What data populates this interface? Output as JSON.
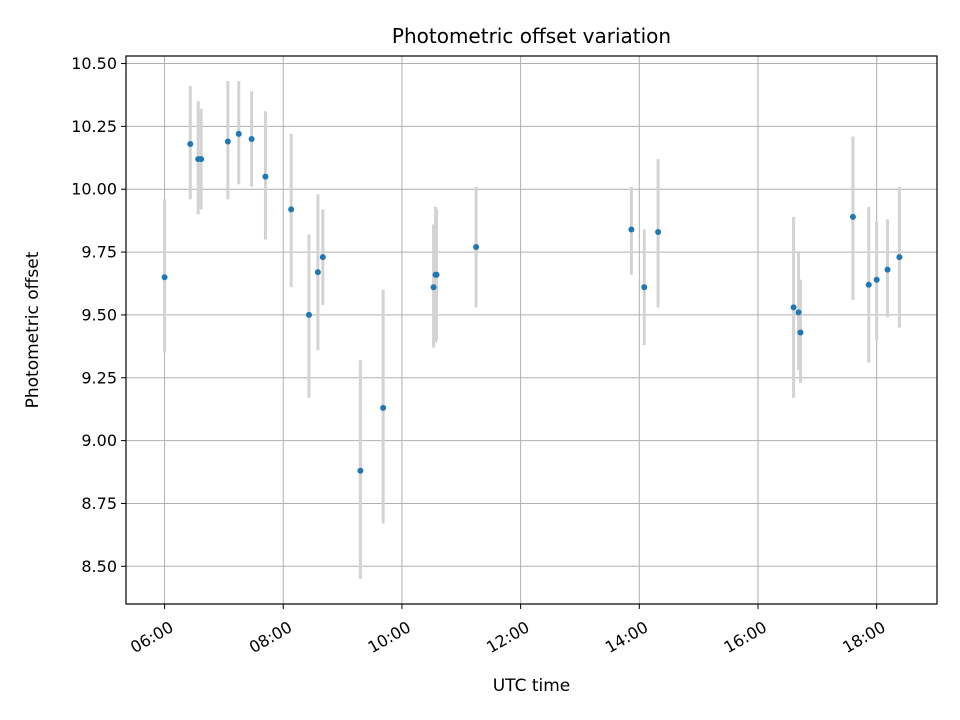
{
  "chart_data": {
    "type": "scatter",
    "title": "Photometric offset variation",
    "xlabel": "UTC time",
    "ylabel": "Photometric offset",
    "xlim": [
      "05:21",
      "19:01"
    ],
    "ylim": [
      8.35,
      10.53
    ],
    "x_ticks": [
      "06:00",
      "08:00",
      "10:00",
      "12:00",
      "14:00",
      "16:00",
      "18:00"
    ],
    "y_ticks": [
      8.5,
      8.75,
      9.0,
      9.25,
      9.5,
      9.75,
      10.0,
      10.25,
      10.5
    ],
    "y_tick_labels": [
      "8.50",
      "8.75",
      "9.00",
      "9.25",
      "9.50",
      "9.75",
      "10.00",
      "10.25",
      "10.50"
    ],
    "grid": true,
    "colors": {
      "marker": "#1f77b4",
      "errorbar": "#d3d3d3",
      "grid": "#b0b0b0"
    },
    "series": [
      {
        "points": [
          {
            "x": "06:00",
            "y": 9.65,
            "yerr_low": 9.35,
            "yerr_high": 9.96
          },
          {
            "x": "06:26",
            "y": 10.18,
            "yerr_low": 9.96,
            "yerr_high": 10.41
          },
          {
            "x": "06:34",
            "y": 10.12,
            "yerr_low": 9.9,
            "yerr_high": 10.35
          },
          {
            "x": "06:37",
            "y": 10.12,
            "yerr_low": 9.92,
            "yerr_high": 10.32
          },
          {
            "x": "07:04",
            "y": 10.19,
            "yerr_low": 9.96,
            "yerr_high": 10.43
          },
          {
            "x": "07:15",
            "y": 10.22,
            "yerr_low": 10.02,
            "yerr_high": 10.43
          },
          {
            "x": "07:28",
            "y": 10.2,
            "yerr_low": 10.01,
            "yerr_high": 10.39
          },
          {
            "x": "07:42",
            "y": 10.05,
            "yerr_low": 9.8,
            "yerr_high": 10.31
          },
          {
            "x": "08:08",
            "y": 9.92,
            "yerr_low": 9.61,
            "yerr_high": 10.22
          },
          {
            "x": "08:26",
            "y": 9.5,
            "yerr_low": 9.17,
            "yerr_high": 9.82
          },
          {
            "x": "08:35",
            "y": 9.67,
            "yerr_low": 9.36,
            "yerr_high": 9.98
          },
          {
            "x": "08:40",
            "y": 9.73,
            "yerr_low": 9.54,
            "yerr_high": 9.92
          },
          {
            "x": "09:18",
            "y": 8.88,
            "yerr_low": 8.45,
            "yerr_high": 9.32
          },
          {
            "x": "09:41",
            "y": 9.13,
            "yerr_low": 8.67,
            "yerr_high": 9.6
          },
          {
            "x": "10:32",
            "y": 9.61,
            "yerr_low": 9.37,
            "yerr_high": 9.86
          },
          {
            "x": "10:34",
            "y": 9.66,
            "yerr_low": 9.39,
            "yerr_high": 9.93
          },
          {
            "x": "10:35",
            "y": 9.66,
            "yerr_low": 9.4,
            "yerr_high": 9.92
          },
          {
            "x": "11:15",
            "y": 9.77,
            "yerr_low": 9.53,
            "yerr_high": 10.01
          },
          {
            "x": "13:52",
            "y": 9.84,
            "yerr_low": 9.66,
            "yerr_high": 10.01
          },
          {
            "x": "14:05",
            "y": 9.61,
            "yerr_low": 9.38,
            "yerr_high": 9.84
          },
          {
            "x": "14:19",
            "y": 9.83,
            "yerr_low": 9.53,
            "yerr_high": 10.12
          },
          {
            "x": "16:36",
            "y": 9.53,
            "yerr_low": 9.17,
            "yerr_high": 9.89
          },
          {
            "x": "16:41",
            "y": 9.51,
            "yerr_low": 9.28,
            "yerr_high": 9.75
          },
          {
            "x": "16:43",
            "y": 9.43,
            "yerr_low": 9.23,
            "yerr_high": 9.64
          },
          {
            "x": "17:36",
            "y": 9.89,
            "yerr_low": 9.56,
            "yerr_high": 10.21
          },
          {
            "x": "17:52",
            "y": 9.62,
            "yerr_low": 9.31,
            "yerr_high": 9.93
          },
          {
            "x": "18:00",
            "y": 9.64,
            "yerr_low": 9.4,
            "yerr_high": 9.87
          },
          {
            "x": "18:11",
            "y": 9.68,
            "yerr_low": 9.49,
            "yerr_high": 9.88
          },
          {
            "x": "18:23",
            "y": 9.73,
            "yerr_low": 9.45,
            "yerr_high": 10.01
          }
        ]
      }
    ]
  }
}
